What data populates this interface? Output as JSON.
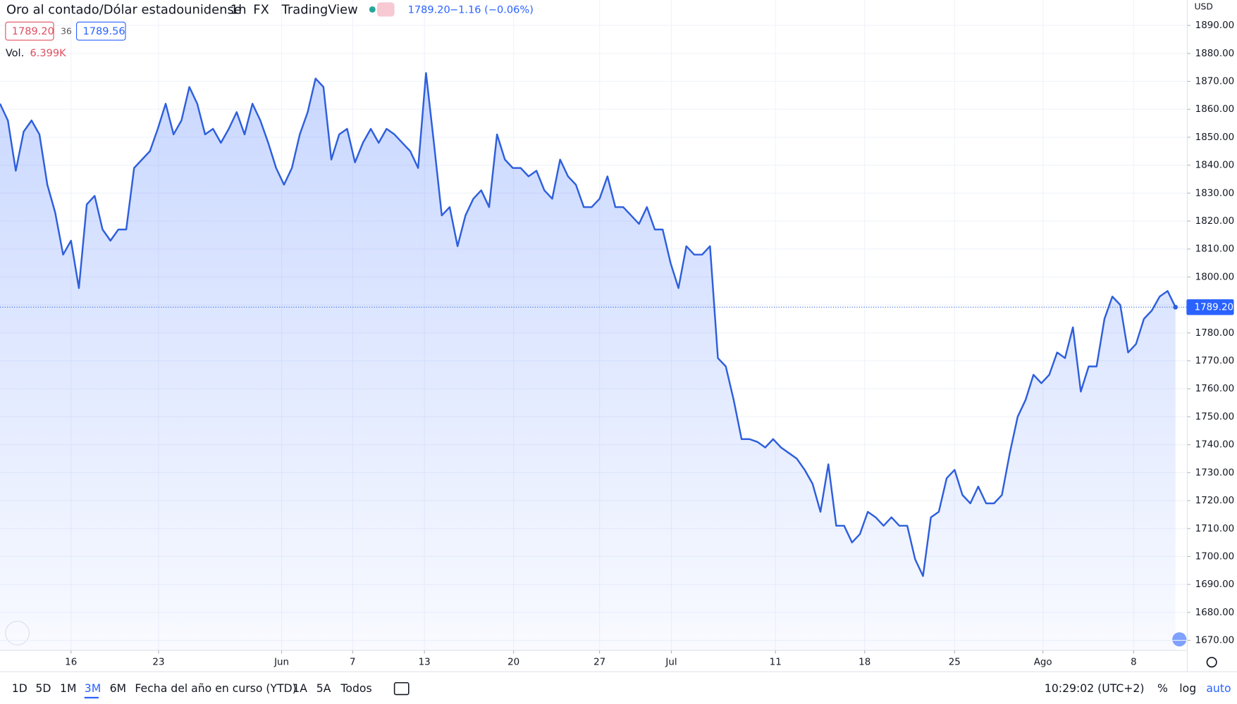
{
  "header": {
    "symbol": "Oro al contado/Dólar estadounidense",
    "interval": "1h",
    "exchange": "FX",
    "source": "TradingView",
    "last": "1789.20",
    "change": "−1.16 (−0.06%)",
    "bid": "1789.20",
    "spread": "36",
    "ask": "1789.56",
    "volume_label": "Vol.",
    "volume": "6.399K",
    "currency": "USD"
  },
  "chart_data": {
    "type": "area",
    "color": "#2e5fdc",
    "values": [
      1862,
      1856,
      1838,
      1852,
      1856,
      1851,
      1833,
      1823,
      1808,
      1813,
      1796,
      1826,
      1829,
      1817,
      1813,
      1817,
      1817,
      1839,
      1842,
      1845,
      1853,
      1862,
      1851,
      1856,
      1868,
      1862,
      1851,
      1853,
      1848,
      1853,
      1859,
      1851,
      1862,
      1856,
      1848,
      1839,
      1833,
      1839,
      1851,
      1859,
      1871,
      1868,
      1842,
      1851,
      1853,
      1841,
      1848,
      1853,
      1848,
      1853,
      1851,
      1848,
      1845,
      1839,
      1873,
      1848,
      1822,
      1825,
      1811,
      1822,
      1828,
      1831,
      1825,
      1851,
      1842,
      1839,
      1839,
      1836,
      1838,
      1831,
      1828,
      1842,
      1836,
      1833,
      1825,
      1825,
      1828,
      1836,
      1825,
      1825,
      1822,
      1819,
      1825,
      1817,
      1817,
      1805,
      1796,
      1811,
      1808,
      1808,
      1811,
      1771,
      1768,
      1756,
      1742,
      1742,
      1741,
      1739,
      1742,
      1739,
      1737,
      1735,
      1731,
      1726,
      1716,
      1733,
      1711,
      1711,
      1705,
      1708,
      1716,
      1714,
      1711,
      1714,
      1711,
      1711,
      1699,
      1693,
      1714,
      1716,
      1728,
      1731,
      1722,
      1719,
      1725,
      1719,
      1719,
      1722,
      1737,
      1750,
      1756,
      1765,
      1762,
      1765,
      1773,
      1771,
      1782,
      1759,
      1768,
      1768,
      1785,
      1793,
      1790,
      1773,
      1776,
      1785,
      1788,
      1793,
      1795,
      1789.2
    ],
    "xlim": [
      0,
      150.5
    ],
    "xticks": [
      {
        "value": 9,
        "label": "16"
      },
      {
        "value": 20.1,
        "label": "23"
      },
      {
        "value": 35.7,
        "label": "Jun"
      },
      {
        "value": 44.7,
        "label": "7"
      },
      {
        "value": 53.8,
        "label": "13"
      },
      {
        "value": 65.1,
        "label": "20"
      },
      {
        "value": 76,
        "label": "27"
      },
      {
        "value": 85.1,
        "label": "Jul"
      },
      {
        "value": 98.3,
        "label": "11"
      },
      {
        "value": 109.6,
        "label": "18"
      },
      {
        "value": 121,
        "label": "25"
      },
      {
        "value": 132.2,
        "label": "Ago"
      },
      {
        "value": 143.7,
        "label": "8"
      }
    ],
    "ylim": [
      1666.4,
      1899.1
    ],
    "yticks": [
      {
        "value": 1670,
        "label": "1670.00"
      },
      {
        "value": 1680,
        "label": "1680.00"
      },
      {
        "value": 1690,
        "label": "1690.00"
      },
      {
        "value": 1700,
        "label": "1700.00"
      },
      {
        "value": 1710,
        "label": "1710.00"
      },
      {
        "value": 1720,
        "label": "1720.00"
      },
      {
        "value": 1730,
        "label": "1730.00"
      },
      {
        "value": 1740,
        "label": "1740.00"
      },
      {
        "value": 1750,
        "label": "1750.00"
      },
      {
        "value": 1760,
        "label": "1760.00"
      },
      {
        "value": 1770,
        "label": "1770.00"
      },
      {
        "value": 1780,
        "label": "1780.00"
      },
      {
        "value": 1790,
        "label": "1790.00"
      },
      {
        "value": 1800,
        "label": "1800.00"
      },
      {
        "value": 1810,
        "label": "1810.00"
      },
      {
        "value": 1820,
        "label": "1820.00"
      },
      {
        "value": 1830,
        "label": "1830.00"
      },
      {
        "value": 1840,
        "label": "1840.00"
      },
      {
        "value": 1850,
        "label": "1850.00"
      },
      {
        "value": 1860,
        "label": "1860.00"
      },
      {
        "value": 1870,
        "label": "1870.00"
      },
      {
        "value": 1880,
        "label": "1880.00"
      },
      {
        "value": 1890,
        "label": "1890.00"
      }
    ],
    "price_line": {
      "value": 1789.2,
      "label": "1789.20"
    },
    "grid": true
  },
  "toolbar": {
    "ranges": [
      "1D",
      "5D",
      "1M",
      "3M",
      "6M",
      "Fecha del año en curso (YTD)",
      "1A",
      "5A",
      "Todos"
    ],
    "active": "3M",
    "time": "10:29:02 (UTC+2)",
    "options": [
      "%",
      "log",
      "auto"
    ]
  }
}
